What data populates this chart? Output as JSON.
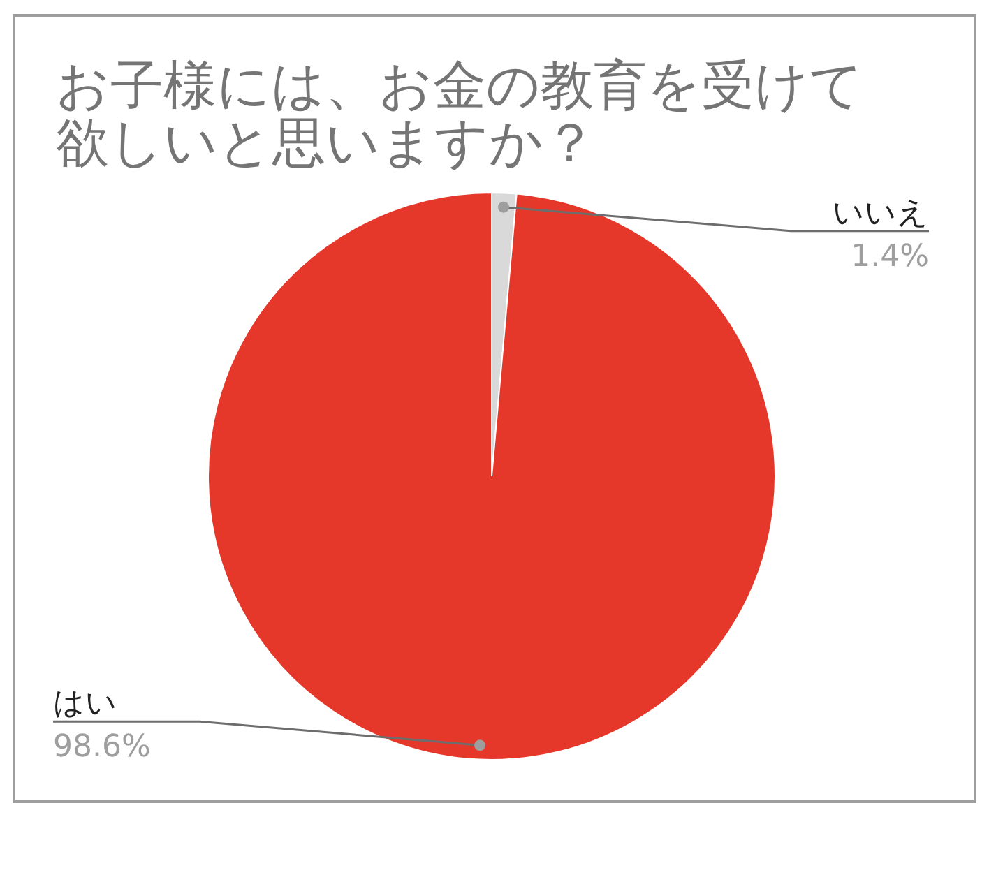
{
  "chart_data": {
    "type": "pie",
    "title": "お子様には、お金の教育を受けて欲しいと思いますか？",
    "categories": [
      "いいえ",
      "はい"
    ],
    "values": [
      1.4,
      98.6
    ],
    "colors": [
      "#d9d9d9",
      "#e6382a"
    ],
    "value_labels": [
      "1.4%",
      "98.6%"
    ]
  }
}
